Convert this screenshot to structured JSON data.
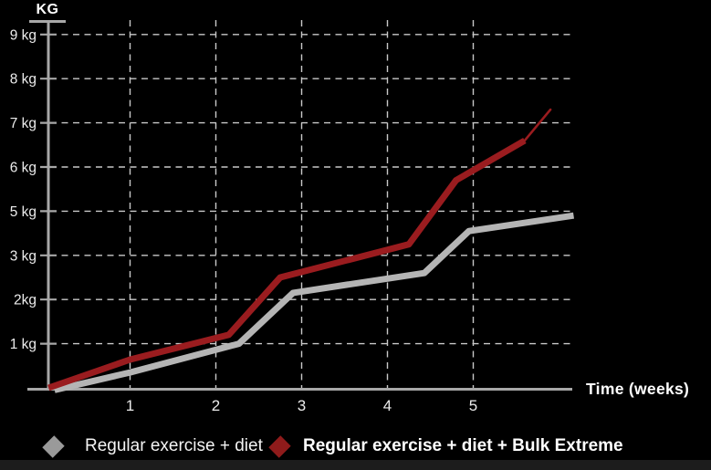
{
  "chart_data": {
    "type": "line",
    "title": "KG",
    "xlabel": "Time (weeks)",
    "x_ticks": [
      1,
      2,
      3,
      4,
      5
    ],
    "x_range": [
      0,
      6.2
    ],
    "y_tick_labels": [
      "1 kg",
      "2kg",
      "3 kg",
      "5 kg",
      "6 kg",
      "7 kg",
      "8 kg",
      "9 kg"
    ],
    "y_unit": "kg",
    "grid": "dashed",
    "legend_position": "bottom-left",
    "series": [
      {
        "name": "Regular exercise + diet",
        "color": "#b5b5b5",
        "marker_color": "#9a9a9a",
        "bold_legend": false,
        "line_width": 7,
        "tapered_tip": false,
        "points": [
          [
            0.12,
            -0.05
          ],
          [
            1,
            0.35
          ],
          [
            2.27,
            1.0
          ],
          [
            2.9,
            2.15
          ],
          [
            4.43,
            2.6
          ],
          [
            4.95,
            4.1
          ],
          [
            6.17,
            4.8
          ]
        ]
      },
      {
        "name": "Regular exercise + diet + Bulk Extreme",
        "color": "#9a1c1f",
        "marker_color": "#8f1b1b",
        "bold_legend": true,
        "line_width": 7,
        "tapered_tip": true,
        "points": [
          [
            0.05,
            0
          ],
          [
            1,
            0.64
          ],
          [
            2.15,
            1.2
          ],
          [
            2.75,
            2.5
          ],
          [
            4.25,
            3.5
          ],
          [
            4.8,
            5.7
          ],
          [
            5.6,
            6.6
          ],
          [
            5.9,
            7.3
          ]
        ]
      }
    ]
  },
  "colors": {
    "background": "#000000",
    "axis": "#a8a8a8",
    "grid": "#c9c9c9",
    "tick_text": "#ececec",
    "bottom_strip": "#1c1c1c"
  }
}
